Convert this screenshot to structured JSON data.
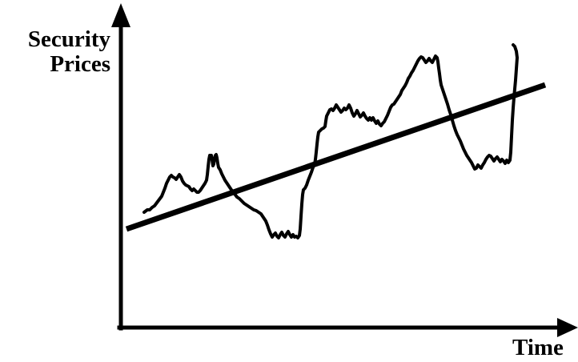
{
  "diagram": {
    "y_axis_label": [
      "Security",
      "Prices"
    ],
    "x_axis_label": "Time",
    "colors": {
      "ink": "#000000",
      "background": "#ffffff"
    },
    "elements": [
      "y-axis with upward arrowhead",
      "x-axis with rightward arrowhead",
      "jagged price path",
      "straight upward trend line"
    ]
  }
}
